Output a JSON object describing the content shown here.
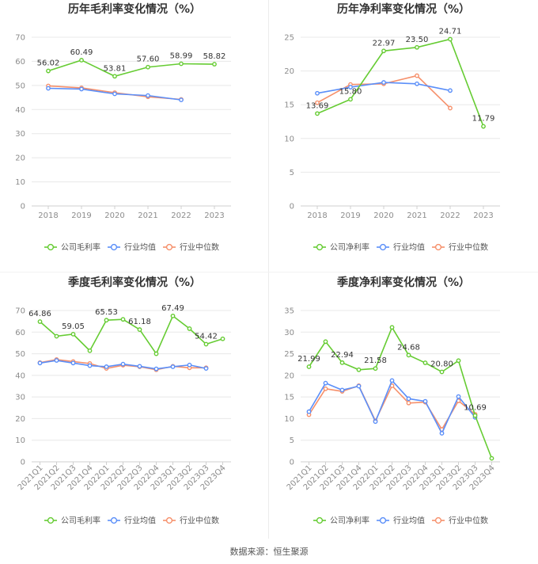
{
  "colors": {
    "company": "#66cc33",
    "industry_avg": "#5b8ff9",
    "industry_median": "#f6906b",
    "grid": "#e8e8e8",
    "axis_text": "#8c8c8c"
  },
  "legend": {
    "company_gross": "公司毛利率",
    "company_net": "公司净利率",
    "industry_avg": "行业均值",
    "industry_median": "行业中位数"
  },
  "footer": {
    "source_label": "数据来源：",
    "source_name": "恒生聚源"
  },
  "chart_data": [
    {
      "id": "annual_gross",
      "type": "line",
      "title": "历年毛利率变化情况（%）",
      "categories": [
        "2018",
        "2019",
        "2020",
        "2021",
        "2022",
        "2023"
      ],
      "ylim": [
        0,
        70
      ],
      "yticks": [
        0,
        10,
        20,
        30,
        40,
        50,
        60,
        70
      ],
      "rotate_x": false,
      "series": [
        {
          "name": "公司毛利率",
          "key": "company",
          "values": [
            56.02,
            60.49,
            53.81,
            57.6,
            58.99,
            58.82
          ]
        },
        {
          "name": "行业均值",
          "key": "industry_avg",
          "values": [
            48.8,
            48.5,
            46.5,
            45.8,
            44.0,
            null
          ]
        },
        {
          "name": "行业中位数",
          "key": "industry_median",
          "values": [
            49.8,
            49.0,
            47.0,
            45.3,
            44.2,
            null
          ]
        }
      ],
      "labels": [
        {
          "index": 0,
          "text": "56.02"
        },
        {
          "index": 1,
          "text": "60.49"
        },
        {
          "index": 2,
          "text": "53.81"
        },
        {
          "index": 3,
          "text": "57.60"
        },
        {
          "index": 4,
          "text": "58.99"
        },
        {
          "index": 5,
          "text": "58.82"
        }
      ],
      "legend_type": "gross"
    },
    {
      "id": "annual_net",
      "type": "line",
      "title": "历年净利率变化情况（%）",
      "categories": [
        "2018",
        "2019",
        "2020",
        "2021",
        "2022",
        "2023"
      ],
      "ylim": [
        0,
        25
      ],
      "yticks": [
        0,
        5,
        10,
        15,
        20,
        25
      ],
      "rotate_x": false,
      "series": [
        {
          "name": "公司净利率",
          "key": "company",
          "values": [
            13.69,
            15.8,
            22.97,
            23.5,
            24.71,
            11.79
          ]
        },
        {
          "name": "行业均值",
          "key": "industry_avg",
          "values": [
            16.7,
            17.6,
            18.3,
            18.1,
            17.1,
            null
          ]
        },
        {
          "name": "行业中位数",
          "key": "industry_median",
          "values": [
            15.3,
            18.0,
            18.1,
            19.3,
            14.5,
            null
          ]
        }
      ],
      "labels": [
        {
          "index": 0,
          "text": "13.69"
        },
        {
          "index": 1,
          "text": "15.80"
        },
        {
          "index": 2,
          "text": "22.97"
        },
        {
          "index": 3,
          "text": "23.50"
        },
        {
          "index": 4,
          "text": "24.71"
        },
        {
          "index": 5,
          "text": "11.79"
        }
      ],
      "legend_type": "net"
    },
    {
      "id": "quarterly_gross",
      "type": "line",
      "title": "季度毛利率变化情况（%）",
      "categories": [
        "2021Q1",
        "2021Q2",
        "2021Q3",
        "2021Q4",
        "2022Q1",
        "2022Q2",
        "2022Q3",
        "2022Q4",
        "2023Q1",
        "2023Q2",
        "2023Q3",
        "2023Q4"
      ],
      "ylim": [
        0,
        70
      ],
      "yticks": [
        0,
        10,
        20,
        30,
        40,
        50,
        60,
        70
      ],
      "rotate_x": true,
      "series": [
        {
          "name": "公司毛利率",
          "key": "company",
          "values": [
            64.86,
            58.1,
            59.05,
            51.4,
            65.53,
            65.9,
            61.18,
            50.0,
            67.49,
            61.6,
            54.42,
            56.9
          ]
        },
        {
          "name": "行业均值",
          "key": "industry_avg",
          "values": [
            45.7,
            46.9,
            45.7,
            44.5,
            44.0,
            45.2,
            44.2,
            43.0,
            44.0,
            44.8,
            43.2,
            null
          ]
        },
        {
          "name": "行业中位数",
          "key": "industry_median",
          "values": [
            45.9,
            47.3,
            46.4,
            45.5,
            43.2,
            44.7,
            44.0,
            42.6,
            44.2,
            43.5,
            43.5,
            null
          ]
        }
      ],
      "labels": [
        {
          "index": 0,
          "text": "64.86"
        },
        {
          "index": 2,
          "text": "59.05"
        },
        {
          "index": 4,
          "text": "65.53"
        },
        {
          "index": 6,
          "text": "61.18"
        },
        {
          "index": 8,
          "text": "67.49"
        },
        {
          "index": 10,
          "text": "54.42"
        }
      ],
      "legend_type": "gross"
    },
    {
      "id": "quarterly_net",
      "type": "line",
      "title": "季度净利率变化情况（%）",
      "categories": [
        "2021Q1",
        "2021Q2",
        "2021Q3",
        "2021Q4",
        "2022Q1",
        "2022Q2",
        "2022Q3",
        "2022Q4",
        "2023Q1",
        "2023Q2",
        "2023Q3",
        "2023Q4"
      ],
      "ylim": [
        0,
        35
      ],
      "yticks": [
        0,
        5,
        10,
        15,
        20,
        25,
        30,
        35
      ],
      "rotate_x": true,
      "series": [
        {
          "name": "公司净利率",
          "key": "company",
          "values": [
            21.99,
            27.8,
            22.94,
            21.3,
            21.58,
            31.1,
            24.68,
            22.9,
            20.8,
            23.4,
            10.69,
            0.8
          ]
        },
        {
          "name": "行业均值",
          "key": "industry_avg",
          "values": [
            11.6,
            18.2,
            16.6,
            17.5,
            9.3,
            18.8,
            14.6,
            14.0,
            6.6,
            15.1,
            10.3,
            null
          ]
        },
        {
          "name": "行业中位数",
          "key": "industry_median",
          "values": [
            10.9,
            16.9,
            16.3,
            17.6,
            9.5,
            17.6,
            13.6,
            13.8,
            7.5,
            14.1,
            11.0,
            null
          ]
        }
      ],
      "labels": [
        {
          "index": 0,
          "text": "21.99"
        },
        {
          "index": 2,
          "text": "22.94"
        },
        {
          "index": 4,
          "text": "21.58"
        },
        {
          "index": 6,
          "text": "24.68"
        },
        {
          "index": 8,
          "text": "20.80"
        },
        {
          "index": 10,
          "text": "10.69"
        }
      ],
      "legend_type": "net"
    }
  ]
}
